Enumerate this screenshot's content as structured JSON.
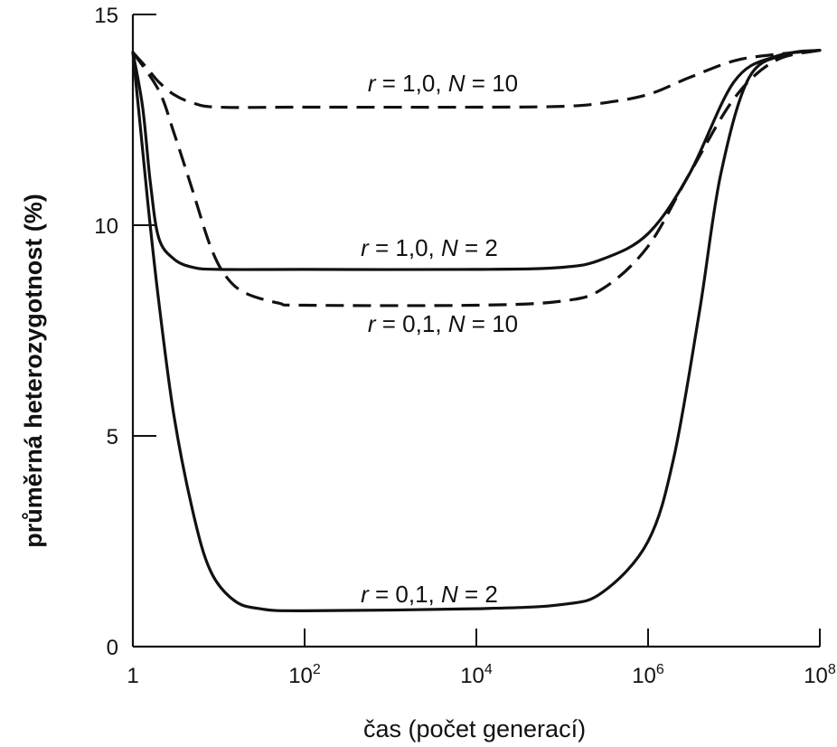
{
  "chart_data": {
    "type": "line",
    "xlabel": "čas (počet generací)",
    "ylabel": "průměrná heterozygotnost (%)",
    "x_scale": "log10",
    "xlim": [
      1,
      100000000
    ],
    "ylim": [
      0,
      15
    ],
    "y_ticks": [
      {
        "value": 0,
        "label": "0"
      },
      {
        "value": 5,
        "label": "5"
      },
      {
        "value": 10,
        "label": "10"
      },
      {
        "value": 15,
        "label": "15"
      }
    ],
    "x_ticks": [
      {
        "value": 1,
        "base": "1",
        "exp": ""
      },
      {
        "value": 100,
        "base": "10",
        "exp": "2"
      },
      {
        "value": 10000,
        "base": "10",
        "exp": "4"
      },
      {
        "value": 1000000,
        "base": "10",
        "exp": "6"
      },
      {
        "value": 100000000,
        "base": "10",
        "exp": "8"
      }
    ],
    "series": [
      {
        "name": "r = 1,0, N = 10",
        "r": "1,0",
        "N": "10",
        "style": "dashed",
        "points": [
          [
            1,
            14.1
          ],
          [
            1.5,
            13.7
          ],
          [
            2,
            13.4
          ],
          [
            3,
            13.1
          ],
          [
            5,
            12.9
          ],
          [
            10,
            12.8
          ],
          [
            100,
            12.8
          ],
          [
            10000,
            12.8
          ],
          [
            100000,
            12.82
          ],
          [
            300000,
            12.9
          ],
          [
            1000000,
            13.1
          ],
          [
            3000000,
            13.5
          ],
          [
            10000000,
            13.9
          ],
          [
            30000000,
            14.05
          ],
          [
            100000000,
            14.15
          ]
        ]
      },
      {
        "name": "r = 1,0, N = 2",
        "r": "1,0",
        "N": "2",
        "style": "solid",
        "points": [
          [
            1,
            14.1
          ],
          [
            1.3,
            12.8
          ],
          [
            1.6,
            11.0
          ],
          [
            2,
            9.7
          ],
          [
            3,
            9.2
          ],
          [
            5,
            9.0
          ],
          [
            10,
            8.95
          ],
          [
            100,
            8.95
          ],
          [
            10000,
            8.95
          ],
          [
            100000,
            9.0
          ],
          [
            300000,
            9.2
          ],
          [
            1000000,
            9.8
          ],
          [
            3000000,
            11.2
          ],
          [
            10000000,
            13.4
          ],
          [
            30000000,
            14.0
          ],
          [
            100000000,
            14.15
          ]
        ]
      },
      {
        "name": "r = 0,1, N = 10",
        "r": "0,1",
        "N": "10",
        "style": "dashed",
        "points": [
          [
            1,
            14.1
          ],
          [
            2,
            13.2
          ],
          [
            3,
            12.2
          ],
          [
            5,
            10.8
          ],
          [
            8,
            9.5
          ],
          [
            12,
            8.8
          ],
          [
            20,
            8.4
          ],
          [
            50,
            8.15
          ],
          [
            100,
            8.1
          ],
          [
            10000,
            8.1
          ],
          [
            100000,
            8.2
          ],
          [
            300000,
            8.5
          ],
          [
            1000000,
            9.5
          ],
          [
            3000000,
            11.2
          ],
          [
            10000000,
            13.0
          ],
          [
            30000000,
            13.9
          ],
          [
            100000000,
            14.15
          ]
        ]
      },
      {
        "name": "r = 0,1, N = 2",
        "r": "0,1",
        "N": "2",
        "style": "solid",
        "points": [
          [
            1,
            14.1
          ],
          [
            1.2,
            12.5
          ],
          [
            1.5,
            10.5
          ],
          [
            2,
            8.2
          ],
          [
            3,
            5.5
          ],
          [
            5,
            3.2
          ],
          [
            8,
            1.8
          ],
          [
            15,
            1.1
          ],
          [
            30,
            0.9
          ],
          [
            100,
            0.85
          ],
          [
            10000,
            0.9
          ],
          [
            100000,
            1.0
          ],
          [
            300000,
            1.3
          ],
          [
            1000000,
            2.5
          ],
          [
            2000000,
            4.5
          ],
          [
            4000000,
            8.0
          ],
          [
            7000000,
            11.2
          ],
          [
            15000000,
            13.5
          ],
          [
            40000000,
            14.05
          ],
          [
            100000000,
            14.15
          ]
        ]
      }
    ]
  }
}
